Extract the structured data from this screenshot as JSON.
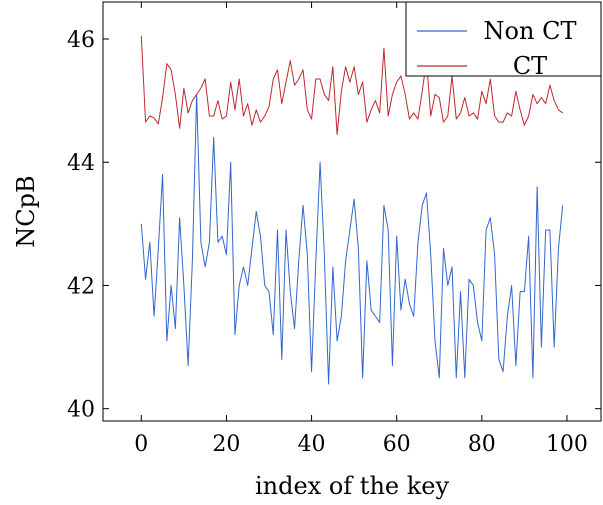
{
  "chart_data": {
    "type": "line",
    "xlabel": "index of the key",
    "ylabel": "NCpB",
    "xlim": [
      -9,
      108
    ],
    "ylim": [
      39.8,
      46.6
    ],
    "xticks": [
      0,
      20,
      40,
      60,
      80,
      100
    ],
    "yticks": [
      40,
      42,
      44,
      46
    ],
    "grid": false,
    "legend_position": "top-right",
    "x": [
      0,
      1,
      2,
      3,
      4,
      5,
      6,
      7,
      8,
      9,
      10,
      11,
      12,
      13,
      14,
      15,
      16,
      17,
      18,
      19,
      20,
      21,
      22,
      23,
      24,
      25,
      26,
      27,
      28,
      29,
      30,
      31,
      32,
      33,
      34,
      35,
      36,
      37,
      38,
      39,
      40,
      41,
      42,
      43,
      44,
      45,
      46,
      47,
      48,
      49,
      50,
      51,
      52,
      53,
      54,
      55,
      56,
      57,
      58,
      59,
      60,
      61,
      62,
      63,
      64,
      65,
      66,
      67,
      68,
      69,
      70,
      71,
      72,
      73,
      74,
      75,
      76,
      77,
      78,
      79,
      80,
      81,
      82,
      83,
      84,
      85,
      86,
      87,
      88,
      89,
      90,
      91,
      92,
      93,
      94,
      95,
      96,
      97,
      98,
      99
    ],
    "series": [
      {
        "name": "Non CT",
        "color": "#3366cc",
        "values": [
          43.0,
          42.1,
          42.7,
          41.5,
          42.6,
          43.8,
          41.1,
          42.0,
          41.3,
          43.1,
          42.0,
          40.7,
          42.4,
          45.1,
          42.7,
          42.3,
          42.7,
          44.4,
          42.7,
          42.8,
          42.5,
          44.0,
          41.2,
          42.0,
          42.3,
          42.0,
          42.6,
          43.2,
          42.8,
          42.0,
          41.9,
          41.2,
          42.9,
          40.8,
          42.9,
          41.9,
          41.3,
          42.4,
          43.3,
          42.5,
          40.6,
          42.4,
          44.0,
          42.5,
          40.4,
          42.3,
          41.1,
          41.5,
          42.4,
          42.9,
          43.4,
          42.6,
          40.5,
          42.4,
          41.6,
          41.5,
          41.4,
          43.3,
          42.9,
          40.7,
          42.8,
          41.6,
          42.1,
          41.7,
          41.5,
          42.7,
          43.3,
          43.5,
          42.5,
          41.1,
          40.5,
          42.6,
          42.0,
          42.3,
          40.5,
          41.9,
          40.5,
          42.1,
          42.0,
          41.4,
          41.1,
          42.9,
          43.1,
          42.5,
          40.8,
          40.6,
          41.5,
          42.0,
          40.7,
          41.9,
          41.9,
          42.8,
          40.5,
          43.6,
          41.0,
          42.9,
          42.9,
          41.0,
          42.6,
          43.3
        ]
      },
      {
        "name": "CT",
        "color": "#c0282d",
        "values": [
          46.05,
          44.65,
          44.75,
          44.72,
          44.62,
          45.05,
          45.6,
          45.5,
          45.1,
          44.55,
          45.2,
          44.8,
          45.0,
          45.1,
          45.2,
          45.35,
          44.75,
          44.75,
          45.0,
          44.7,
          44.75,
          45.3,
          44.85,
          45.35,
          44.75,
          44.95,
          44.6,
          44.85,
          44.65,
          44.75,
          44.9,
          45.35,
          45.5,
          44.95,
          45.3,
          45.65,
          45.25,
          45.35,
          45.5,
          44.85,
          44.7,
          45.35,
          45.35,
          45.1,
          45.0,
          45.55,
          44.45,
          45.15,
          45.55,
          45.3,
          45.55,
          45.1,
          45.3,
          44.65,
          44.85,
          45.0,
          44.8,
          45.85,
          44.75,
          45.1,
          45.3,
          45.4,
          45.1,
          44.7,
          44.8,
          44.7,
          45.15,
          45.65,
          44.75,
          45.1,
          45.05,
          44.65,
          44.75,
          45.4,
          44.7,
          44.8,
          45.05,
          44.75,
          44.8,
          44.7,
          45.15,
          44.95,
          45.35,
          44.75,
          44.65,
          44.65,
          44.8,
          44.75,
          45.15,
          44.85,
          44.6,
          44.75,
          45.1,
          44.95,
          45.05,
          44.95,
          45.25,
          45.0,
          44.85,
          44.8
        ]
      }
    ]
  }
}
